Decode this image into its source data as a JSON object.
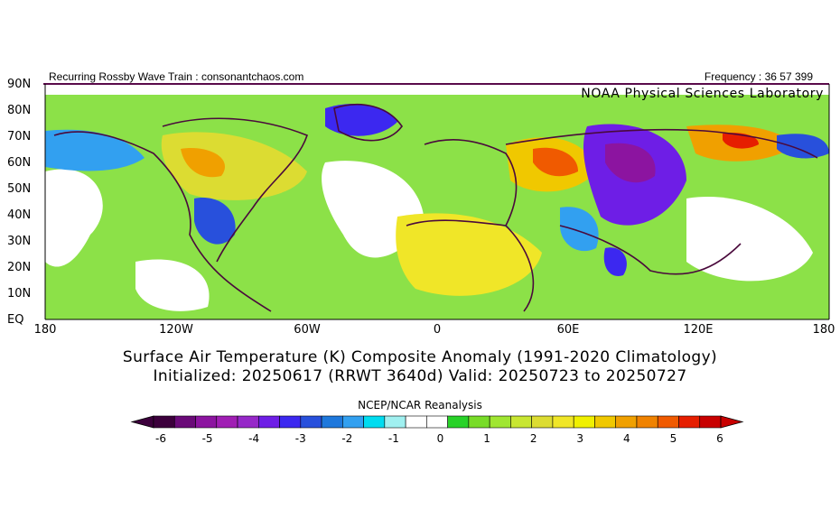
{
  "header": {
    "left": "Recurring Rossby Wave Train : consonantchaos.com",
    "right": "Frequency : 36 57 399"
  },
  "map": {
    "credit": "NOAA Physical Sciences Laboratory",
    "lat_labels": [
      "90N",
      "80N",
      "70N",
      "60N",
      "50N",
      "40N",
      "30N",
      "20N",
      "10N",
      "EQ"
    ],
    "lon_labels": [
      "180",
      "120W",
      "60W",
      "0",
      "60E",
      "120E",
      "180"
    ],
    "projection": "equirectangular",
    "lat_range": [
      0,
      90
    ],
    "lon_range": [
      -180,
      180
    ]
  },
  "titles": {
    "line1": "Surface Air Temperature (K) Composite Anomaly (1991-2020 Climatology)",
    "line2": "Initialized: 20250617 (RRWT 3640d) Valid: 20250723 to 20250727",
    "source": "NCEP/NCAR Reanalysis"
  },
  "colorbar": {
    "ticks": [
      "-6",
      "-5",
      "-4",
      "-3",
      "-2",
      "-1",
      "0",
      "1",
      "2",
      "3",
      "4",
      "5",
      "6"
    ],
    "colors": [
      "#3c003c",
      "#6a0a78",
      "#8c14a0",
      "#a01eb4",
      "#9628c8",
      "#6e1ee6",
      "#3c28f0",
      "#2850dc",
      "#1e78dc",
      "#32a0f0",
      "#00dcf0",
      "#a0f0f0",
      "#ffffff",
      "#ffffff",
      "#28d228",
      "#78dc28",
      "#a0e632",
      "#c8e632",
      "#dcdc32",
      "#f0e628",
      "#f0f000",
      "#f0c800",
      "#f0a000",
      "#f08200",
      "#f05a00",
      "#e61e00",
      "#c80000"
    ]
  }
}
